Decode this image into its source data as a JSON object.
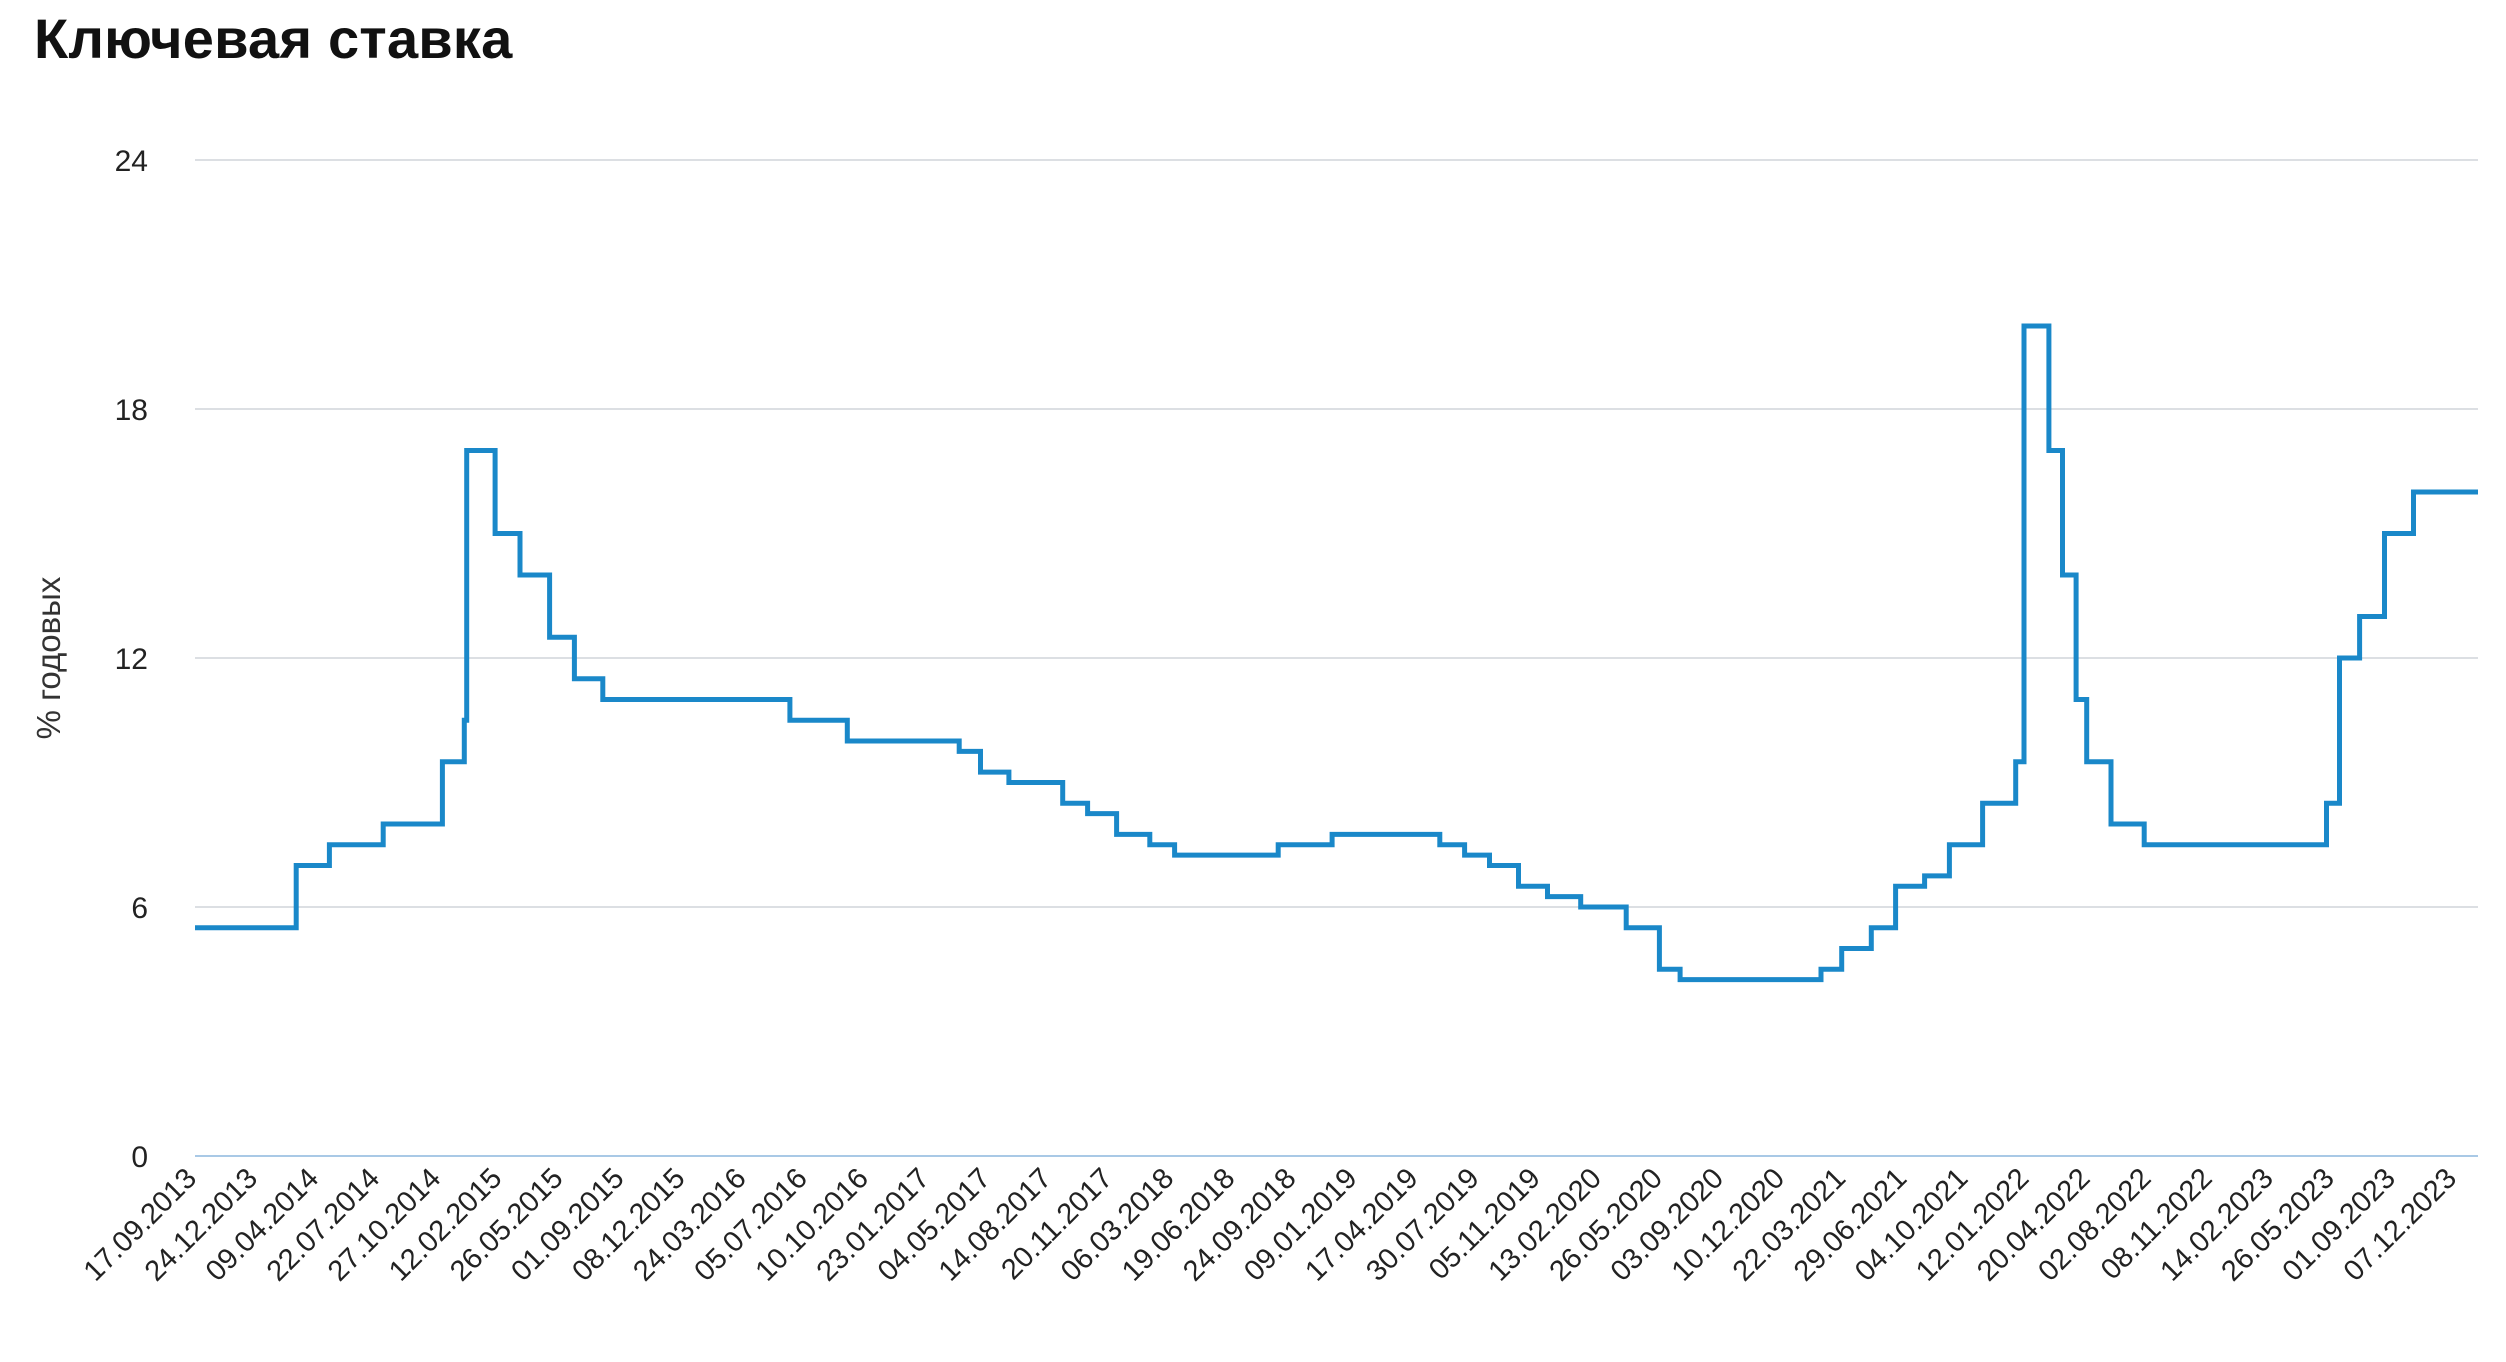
{
  "chart_data": {
    "type": "line",
    "title": "Ключевая ставка",
    "ylabel": "% годовых",
    "xlabel": "",
    "ylim": [
      0,
      24
    ],
    "yticks": [
      "0",
      "6",
      "12",
      "18",
      "24"
    ],
    "grid": true,
    "legend": "none",
    "line_color": "#1a88c9",
    "xticks": [
      "17.09.2013",
      "24.12.2013",
      "09.04.2014",
      "22.07.2014",
      "27.10.2014",
      "12.02.2015",
      "26.05.2015",
      "01.09.2015",
      "08.12.2015",
      "24.03.2016",
      "05.07.2016",
      "10.10.2016",
      "23.01.2017",
      "04.05.2017",
      "14.08.2017",
      "20.11.2017",
      "06.03.2018",
      "19.06.2018",
      "24.09.2018",
      "09.01.2019",
      "17.04.2019",
      "30.07.2019",
      "05.11.2019",
      "13.02.2020",
      "26.05.2020",
      "03.09.2020",
      "10.12.2020",
      "22.03.2021",
      "29.06.2021",
      "04.10.2021",
      "12.01.2022",
      "20.04.2022",
      "02.08.2022",
      "08.11.2022",
      "14.02.2023",
      "26.05.2023",
      "01.09.2023",
      "07.12.2023"
    ],
    "series": [
      {
        "steps": [
          [
            "2013-09-13",
            5.5
          ],
          [
            "2014-03-03",
            7.0
          ],
          [
            "2014-04-28",
            7.5
          ],
          [
            "2014-07-28",
            8.0
          ],
          [
            "2014-11-05",
            9.5
          ],
          [
            "2014-12-12",
            10.5
          ],
          [
            "2014-12-16",
            17.0
          ],
          [
            "2015-02-02",
            15.0
          ],
          [
            "2015-03-16",
            14.0
          ],
          [
            "2015-05-05",
            12.5
          ],
          [
            "2015-06-16",
            11.5
          ],
          [
            "2015-08-03",
            11.0
          ],
          [
            "2016-06-14",
            10.5
          ],
          [
            "2016-09-19",
            10.0
          ],
          [
            "2017-03-27",
            9.75
          ],
          [
            "2017-05-02",
            9.25
          ],
          [
            "2017-06-19",
            9.0
          ],
          [
            "2017-09-18",
            8.5
          ],
          [
            "2017-10-30",
            8.25
          ],
          [
            "2017-12-18",
            7.75
          ],
          [
            "2018-02-12",
            7.5
          ],
          [
            "2018-03-26",
            7.25
          ],
          [
            "2018-09-17",
            7.5
          ],
          [
            "2018-12-17",
            7.75
          ],
          [
            "2019-06-17",
            7.5
          ],
          [
            "2019-07-29",
            7.25
          ],
          [
            "2019-09-09",
            7.0
          ],
          [
            "2019-10-28",
            6.5
          ],
          [
            "2019-12-16",
            6.25
          ],
          [
            "2020-02-10",
            6.0
          ],
          [
            "2020-04-27",
            5.5
          ],
          [
            "2020-06-22",
            4.5
          ],
          [
            "2020-07-27",
            4.25
          ],
          [
            "2021-03-22",
            4.5
          ],
          [
            "2021-04-26",
            5.0
          ],
          [
            "2021-06-15",
            5.5
          ],
          [
            "2021-07-26",
            6.5
          ],
          [
            "2021-09-13",
            6.75
          ],
          [
            "2021-10-25",
            7.5
          ],
          [
            "2021-12-20",
            8.5
          ],
          [
            "2022-02-14",
            9.5
          ],
          [
            "2022-02-28",
            20.0
          ],
          [
            "2022-04-11",
            17.0
          ],
          [
            "2022-05-04",
            14.0
          ],
          [
            "2022-05-27",
            11.0
          ],
          [
            "2022-06-14",
            9.5
          ],
          [
            "2022-07-25",
            8.0
          ],
          [
            "2022-09-19",
            7.5
          ],
          [
            "2023-07-24",
            8.5
          ],
          [
            "2023-08-15",
            12.0
          ],
          [
            "2023-09-18",
            13.0
          ],
          [
            "2023-10-30",
            15.0
          ],
          [
            "2023-12-18",
            16.0
          ],
          [
            "2024-04-05",
            16.0
          ]
        ]
      }
    ]
  }
}
